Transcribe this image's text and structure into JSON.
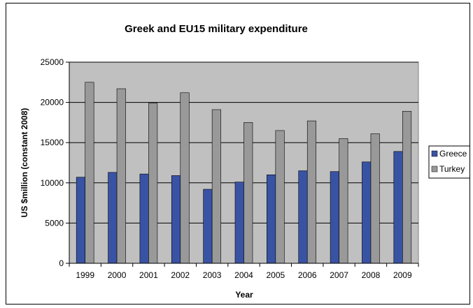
{
  "chart_data": {
    "type": "bar",
    "title": "Greek and EU15 military expenditure",
    "xlabel": "Year",
    "ylabel": "US $million (constant 2008)",
    "categories": [
      "1999",
      "2000",
      "2001",
      "2002",
      "2003",
      "2004",
      "2005",
      "2006",
      "2007",
      "2008",
      "2009"
    ],
    "series": [
      {
        "name": "Greece",
        "color": "#3953a4",
        "values": [
          10700,
          11300,
          11100,
          10900,
          9200,
          10100,
          11000,
          11500,
          11400,
          12600,
          13900
        ]
      },
      {
        "name": "Turkey",
        "color": "#999999",
        "values": [
          22500,
          21700,
          19900,
          21200,
          19100,
          17500,
          16500,
          17700,
          15500,
          16100,
          18900
        ]
      }
    ],
    "ylim": [
      0,
      25000
    ],
    "yticks": [
      "0",
      "5000",
      "10000",
      "15000",
      "20000",
      "25000"
    ],
    "grid": true,
    "plot_background": "#c0c0c0",
    "legend_position": "right"
  }
}
